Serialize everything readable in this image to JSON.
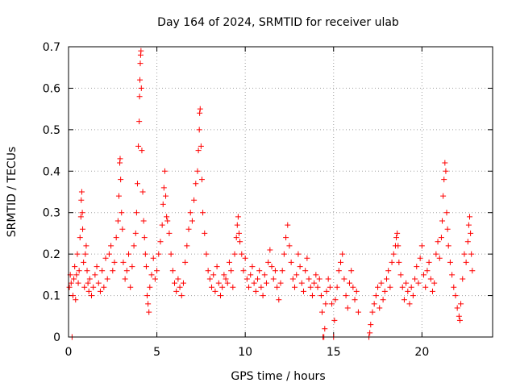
{
  "chart_data": {
    "type": "scatter",
    "title": "Day 164 of 2024, SRMTID for receiver ulab",
    "xlabel": "GPS time / hours",
    "ylabel": "SRMTID / TECUs",
    "xlim": [
      0,
      24
    ],
    "ylim": [
      0,
      0.7
    ],
    "xticks": [
      0,
      5,
      10,
      15,
      20
    ],
    "xtick_labels": [
      "0",
      "5",
      "10",
      "15",
      "20"
    ],
    "yticks": [
      0,
      0.1,
      0.2,
      0.3,
      0.4,
      0.5,
      0.6,
      0.7
    ],
    "ytick_labels": [
      "0",
      "0.1",
      "0.2",
      "0.3",
      "0.4",
      "0.5",
      "0.6",
      "0.7"
    ],
    "grid": true,
    "marker": "+",
    "marker_color": "#ff0000",
    "series": [
      {
        "name": "SRMTID",
        "points": [
          [
            0.05,
            0.12
          ],
          [
            0.1,
            0.15
          ],
          [
            0.15,
            0.13
          ],
          [
            0.2,
            0.0
          ],
          [
            0.25,
            0.1
          ],
          [
            0.3,
            0.14
          ],
          [
            0.35,
            0.17
          ],
          [
            0.4,
            0.09
          ],
          [
            0.45,
            0.15
          ],
          [
            0.5,
            0.2
          ],
          [
            0.55,
            0.13
          ],
          [
            0.6,
            0.16
          ],
          [
            0.65,
            0.24
          ],
          [
            0.7,
            0.29
          ],
          [
            0.72,
            0.33
          ],
          [
            0.75,
            0.35
          ],
          [
            0.78,
            0.3
          ],
          [
            0.8,
            0.26
          ],
          [
            0.85,
            0.18
          ],
          [
            0.9,
            0.12
          ],
          [
            0.95,
            0.2
          ],
          [
            1.0,
            0.22
          ],
          [
            1.05,
            0.16
          ],
          [
            1.1,
            0.13
          ],
          [
            1.15,
            0.11
          ],
          [
            1.2,
            0.14
          ],
          [
            1.3,
            0.1
          ],
          [
            1.4,
            0.12
          ],
          [
            1.5,
            0.15
          ],
          [
            1.6,
            0.17
          ],
          [
            1.7,
            0.13
          ],
          [
            1.8,
            0.11
          ],
          [
            1.9,
            0.16
          ],
          [
            2.0,
            0.12
          ],
          [
            2.1,
            0.19
          ],
          [
            2.2,
            0.14
          ],
          [
            2.3,
            0.2
          ],
          [
            2.4,
            0.22
          ],
          [
            2.5,
            0.16
          ],
          [
            2.6,
            0.18
          ],
          [
            2.7,
            0.24
          ],
          [
            2.8,
            0.28
          ],
          [
            2.85,
            0.34
          ],
          [
            2.9,
            0.42
          ],
          [
            2.92,
            0.43
          ],
          [
            2.95,
            0.38
          ],
          [
            3.0,
            0.3
          ],
          [
            3.05,
            0.26
          ],
          [
            3.1,
            0.18
          ],
          [
            3.2,
            0.14
          ],
          [
            3.3,
            0.16
          ],
          [
            3.4,
            0.2
          ],
          [
            3.5,
            0.12
          ],
          [
            3.6,
            0.17
          ],
          [
            3.7,
            0.22
          ],
          [
            3.8,
            0.25
          ],
          [
            3.85,
            0.3
          ],
          [
            3.9,
            0.37
          ],
          [
            3.95,
            0.46
          ],
          [
            4.0,
            0.52
          ],
          [
            4.02,
            0.58
          ],
          [
            4.04,
            0.62
          ],
          [
            4.06,
            0.66
          ],
          [
            4.08,
            0.68
          ],
          [
            4.1,
            0.69
          ],
          [
            4.12,
            0.6
          ],
          [
            4.15,
            0.45
          ],
          [
            4.2,
            0.35
          ],
          [
            4.25,
            0.28
          ],
          [
            4.3,
            0.24
          ],
          [
            4.35,
            0.2
          ],
          [
            4.4,
            0.17
          ],
          [
            4.45,
            0.1
          ],
          [
            4.5,
            0.08
          ],
          [
            4.55,
            0.06
          ],
          [
            4.6,
            0.12
          ],
          [
            4.7,
            0.15
          ],
          [
            4.8,
            0.19
          ],
          [
            4.9,
            0.14
          ],
          [
            5.0,
            0.16
          ],
          [
            5.1,
            0.2
          ],
          [
            5.2,
            0.23
          ],
          [
            5.3,
            0.27
          ],
          [
            5.35,
            0.32
          ],
          [
            5.4,
            0.36
          ],
          [
            5.45,
            0.4
          ],
          [
            5.5,
            0.34
          ],
          [
            5.55,
            0.29
          ],
          [
            5.6,
            0.28
          ],
          [
            5.7,
            0.25
          ],
          [
            5.8,
            0.2
          ],
          [
            5.9,
            0.16
          ],
          [
            6.0,
            0.13
          ],
          [
            6.1,
            0.11
          ],
          [
            6.2,
            0.14
          ],
          [
            6.3,
            0.12
          ],
          [
            6.4,
            0.1
          ],
          [
            6.5,
            0.13
          ],
          [
            6.6,
            0.18
          ],
          [
            6.7,
            0.22
          ],
          [
            6.8,
            0.26
          ],
          [
            6.9,
            0.3
          ],
          [
            7.0,
            0.28
          ],
          [
            7.1,
            0.33
          ],
          [
            7.2,
            0.37
          ],
          [
            7.3,
            0.4
          ],
          [
            7.35,
            0.45
          ],
          [
            7.4,
            0.5
          ],
          [
            7.42,
            0.54
          ],
          [
            7.45,
            0.55
          ],
          [
            7.5,
            0.46
          ],
          [
            7.55,
            0.38
          ],
          [
            7.6,
            0.3
          ],
          [
            7.7,
            0.25
          ],
          [
            7.8,
            0.2
          ],
          [
            7.9,
            0.16
          ],
          [
            8.0,
            0.14
          ],
          [
            8.1,
            0.12
          ],
          [
            8.2,
            0.15
          ],
          [
            8.3,
            0.11
          ],
          [
            8.4,
            0.17
          ],
          [
            8.5,
            0.13
          ],
          [
            8.6,
            0.1
          ],
          [
            8.7,
            0.12
          ],
          [
            8.8,
            0.15
          ],
          [
            8.9,
            0.14
          ],
          [
            9.0,
            0.13
          ],
          [
            9.1,
            0.18
          ],
          [
            9.2,
            0.16
          ],
          [
            9.3,
            0.12
          ],
          [
            9.4,
            0.2
          ],
          [
            9.5,
            0.24
          ],
          [
            9.55,
            0.27
          ],
          [
            9.6,
            0.29
          ],
          [
            9.65,
            0.25
          ],
          [
            9.7,
            0.23
          ],
          [
            9.8,
            0.2
          ],
          [
            9.9,
            0.16
          ],
          [
            10.0,
            0.19
          ],
          [
            10.1,
            0.14
          ],
          [
            10.2,
            0.12
          ],
          [
            10.3,
            0.15
          ],
          [
            10.4,
            0.17
          ],
          [
            10.5,
            0.13
          ],
          [
            10.6,
            0.11
          ],
          [
            10.7,
            0.14
          ],
          [
            10.8,
            0.16
          ],
          [
            10.9,
            0.12
          ],
          [
            11.0,
            0.1
          ],
          [
            11.1,
            0.15
          ],
          [
            11.2,
            0.13
          ],
          [
            11.3,
            0.18
          ],
          [
            11.4,
            0.21
          ],
          [
            11.5,
            0.17
          ],
          [
            11.6,
            0.14
          ],
          [
            11.7,
            0.16
          ],
          [
            11.8,
            0.12
          ],
          [
            11.9,
            0.09
          ],
          [
            12.0,
            0.13
          ],
          [
            12.1,
            0.16
          ],
          [
            12.2,
            0.2
          ],
          [
            12.3,
            0.24
          ],
          [
            12.4,
            0.27
          ],
          [
            12.5,
            0.22
          ],
          [
            12.6,
            0.18
          ],
          [
            12.7,
            0.14
          ],
          [
            12.8,
            0.12
          ],
          [
            12.9,
            0.15
          ],
          [
            13.0,
            0.2
          ],
          [
            13.1,
            0.17
          ],
          [
            13.2,
            0.13
          ],
          [
            13.3,
            0.11
          ],
          [
            13.4,
            0.16
          ],
          [
            13.5,
            0.19
          ],
          [
            13.6,
            0.14
          ],
          [
            13.7,
            0.12
          ],
          [
            13.8,
            0.1
          ],
          [
            13.9,
            0.13
          ],
          [
            14.0,
            0.15
          ],
          [
            14.1,
            0.12
          ],
          [
            14.2,
            0.14
          ],
          [
            14.3,
            0.1
          ],
          [
            14.35,
            0.06
          ],
          [
            14.4,
            0.0
          ],
          [
            14.45,
            0.0
          ],
          [
            14.5,
            0.02
          ],
          [
            14.55,
            0.08
          ],
          [
            14.6,
            0.11
          ],
          [
            14.7,
            0.14
          ],
          [
            14.8,
            0.12
          ],
          [
            14.9,
            0.08
          ],
          [
            15.0,
            0.0
          ],
          [
            15.05,
            0.04
          ],
          [
            15.1,
            0.09
          ],
          [
            15.2,
            0.12
          ],
          [
            15.3,
            0.16
          ],
          [
            15.4,
            0.18
          ],
          [
            15.5,
            0.2
          ],
          [
            15.6,
            0.14
          ],
          [
            15.7,
            0.1
          ],
          [
            15.8,
            0.07
          ],
          [
            15.9,
            0.13
          ],
          [
            16.0,
            0.16
          ],
          [
            16.1,
            0.12
          ],
          [
            16.2,
            0.09
          ],
          [
            16.3,
            0.11
          ],
          [
            16.4,
            0.06
          ],
          [
            17.0,
            0.0
          ],
          [
            17.05,
            0.01
          ],
          [
            17.1,
            0.03
          ],
          [
            17.2,
            0.06
          ],
          [
            17.3,
            0.08
          ],
          [
            17.4,
            0.1
          ],
          [
            17.5,
            0.12
          ],
          [
            17.6,
            0.07
          ],
          [
            17.7,
            0.13
          ],
          [
            17.8,
            0.09
          ],
          [
            17.9,
            0.11
          ],
          [
            18.0,
            0.14
          ],
          [
            18.1,
            0.16
          ],
          [
            18.2,
            0.12
          ],
          [
            18.3,
            0.18
          ],
          [
            18.4,
            0.2
          ],
          [
            18.5,
            0.22
          ],
          [
            18.55,
            0.24
          ],
          [
            18.6,
            0.25
          ],
          [
            18.65,
            0.22
          ],
          [
            18.7,
            0.18
          ],
          [
            18.8,
            0.15
          ],
          [
            18.9,
            0.12
          ],
          [
            19.0,
            0.09
          ],
          [
            19.1,
            0.13
          ],
          [
            19.2,
            0.11
          ],
          [
            19.3,
            0.08
          ],
          [
            19.4,
            0.12
          ],
          [
            19.5,
            0.1
          ],
          [
            19.6,
            0.14
          ],
          [
            19.7,
            0.17
          ],
          [
            19.8,
            0.13
          ],
          [
            19.9,
            0.19
          ],
          [
            20.0,
            0.22
          ],
          [
            20.1,
            0.15
          ],
          [
            20.2,
            0.12
          ],
          [
            20.3,
            0.16
          ],
          [
            20.4,
            0.18
          ],
          [
            20.5,
            0.14
          ],
          [
            20.6,
            0.11
          ],
          [
            20.7,
            0.13
          ],
          [
            20.8,
            0.2
          ],
          [
            20.9,
            0.23
          ],
          [
            21.0,
            0.19
          ],
          [
            21.1,
            0.24
          ],
          [
            21.15,
            0.28
          ],
          [
            21.2,
            0.34
          ],
          [
            21.25,
            0.38
          ],
          [
            21.3,
            0.42
          ],
          [
            21.35,
            0.4
          ],
          [
            21.4,
            0.3
          ],
          [
            21.45,
            0.26
          ],
          [
            21.5,
            0.22
          ],
          [
            21.6,
            0.18
          ],
          [
            21.7,
            0.15
          ],
          [
            21.8,
            0.12
          ],
          [
            21.9,
            0.1
          ],
          [
            22.0,
            0.07
          ],
          [
            22.1,
            0.05
          ],
          [
            22.15,
            0.04
          ],
          [
            22.2,
            0.08
          ],
          [
            22.3,
            0.14
          ],
          [
            22.4,
            0.2
          ],
          [
            22.5,
            0.18
          ],
          [
            22.6,
            0.23
          ],
          [
            22.65,
            0.27
          ],
          [
            22.7,
            0.29
          ],
          [
            22.75,
            0.25
          ],
          [
            22.8,
            0.2
          ],
          [
            22.85,
            0.16
          ]
        ]
      }
    ]
  }
}
